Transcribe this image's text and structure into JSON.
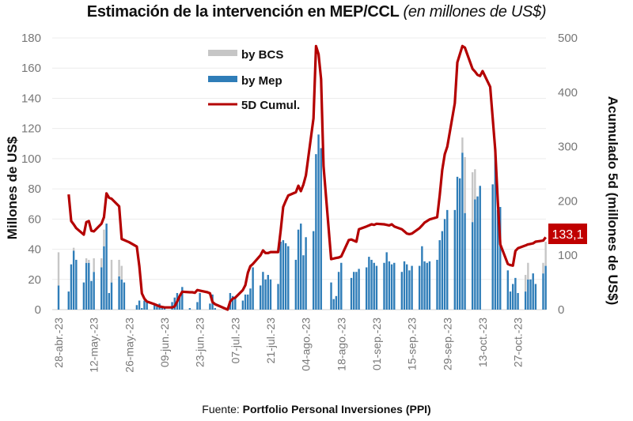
{
  "chart_data": {
    "type": "bar",
    "title": "Estimación de la intervención en MEP/CCL",
    "subtitle": "(en millones de US$)",
    "ylabel": "Millones de US$",
    "y2label": "Acumulado 5d (millones de US$)",
    "ylim": [
      0,
      180
    ],
    "y2lim": [
      0,
      500
    ],
    "yticks": [
      "0",
      "20",
      "40",
      "60",
      "80",
      "100",
      "120",
      "140",
      "160",
      "180"
    ],
    "y2ticks": [
      "0",
      "100",
      "200",
      "300",
      "400",
      "500"
    ],
    "xtick_labels": [
      "28-abr.-23",
      "12-may.-23",
      "26-may.-23",
      "09-jun.-23",
      "23-jun.-23",
      "07-jul.-23",
      "21-jul.-23",
      "04-ago.-23",
      "18-ago.-23",
      "01-sep.-23",
      "15-sep.-23",
      "29-sep.-23",
      "13-oct.-23",
      "27-oct.-23"
    ],
    "grid": true,
    "legend_position": "top-center",
    "legend": [
      "by BCS",
      "by Mep",
      "5D Cumul."
    ],
    "end_label": "133,1",
    "colors": {
      "bcs": "#c6c6c6",
      "mep": "#2f7db8",
      "cumul": "#b40000",
      "end_label_bg": "#c00000"
    },
    "dates": [
      "2023-04-28",
      "2023-05-01",
      "2023-05-02",
      "2023-05-03",
      "2023-05-04",
      "2023-05-05",
      "2023-05-08",
      "2023-05-09",
      "2023-05-10",
      "2023-05-11",
      "2023-05-12",
      "2023-05-15",
      "2023-05-16",
      "2023-05-17",
      "2023-05-18",
      "2023-05-19",
      "2023-05-22",
      "2023-05-23",
      "2023-05-24",
      "2023-05-25",
      "2023-05-26",
      "2023-05-29",
      "2023-05-30",
      "2023-05-31",
      "2023-06-01",
      "2023-06-02",
      "2023-06-05",
      "2023-06-06",
      "2023-06-07",
      "2023-06-08",
      "2023-06-09",
      "2023-06-12",
      "2023-06-13",
      "2023-06-14",
      "2023-06-15",
      "2023-06-16",
      "2023-06-19",
      "2023-06-20",
      "2023-06-21",
      "2023-06-22",
      "2023-06-23",
      "2023-06-26",
      "2023-06-27",
      "2023-06-28",
      "2023-06-29",
      "2023-06-30",
      "2023-07-03",
      "2023-07-04",
      "2023-07-05",
      "2023-07-06",
      "2023-07-07",
      "2023-07-10",
      "2023-07-11",
      "2023-07-12",
      "2023-07-13",
      "2023-07-14",
      "2023-07-17",
      "2023-07-18",
      "2023-07-19",
      "2023-07-20",
      "2023-07-21",
      "2023-07-24",
      "2023-07-25",
      "2023-07-26",
      "2023-07-27",
      "2023-07-28",
      "2023-07-31",
      "2023-08-01",
      "2023-08-02",
      "2023-08-03",
      "2023-08-04",
      "2023-08-07",
      "2023-08-08",
      "2023-08-09",
      "2023-08-10",
      "2023-08-11",
      "2023-08-14",
      "2023-08-15",
      "2023-08-16",
      "2023-08-17",
      "2023-08-18",
      "2023-08-21",
      "2023-08-22",
      "2023-08-23",
      "2023-08-24",
      "2023-08-25",
      "2023-08-28",
      "2023-08-29",
      "2023-08-30",
      "2023-08-31",
      "2023-09-01",
      "2023-09-04",
      "2023-09-05",
      "2023-09-06",
      "2023-09-07",
      "2023-09-08",
      "2023-09-11",
      "2023-09-12",
      "2023-09-13",
      "2023-09-14",
      "2023-09-15",
      "2023-09-18",
      "2023-09-19",
      "2023-09-20",
      "2023-09-21",
      "2023-09-22",
      "2023-09-25",
      "2023-09-26",
      "2023-09-27",
      "2023-09-28",
      "2023-09-29",
      "2023-10-02",
      "2023-10-03",
      "2023-10-04",
      "2023-10-05",
      "2023-10-06",
      "2023-10-09",
      "2023-10-10",
      "2023-10-11",
      "2023-10-12",
      "2023-10-13",
      "2023-10-16",
      "2023-10-17",
      "2023-10-18",
      "2023-10-19",
      "2023-10-20",
      "2023-10-23",
      "2023-10-24",
      "2023-10-25",
      "2023-10-26",
      "2023-10-27",
      "2023-10-30",
      "2023-10-31",
      "2023-11-01",
      "2023-11-02",
      "2023-11-03",
      "2023-11-06",
      "2023-11-07"
    ],
    "series": [
      {
        "name": "by Mep",
        "values": [
          16,
          0,
          12,
          30,
          39,
          33,
          18,
          31,
          31,
          19,
          25,
          28,
          42,
          57,
          11,
          18,
          22,
          20,
          18,
          0,
          0,
          3,
          6,
          1,
          6,
          5,
          3,
          2,
          4,
          2,
          1,
          5,
          8,
          11,
          9,
          15,
          1,
          0,
          0,
          5,
          11,
          0,
          4,
          10,
          1,
          0,
          0,
          1,
          11,
          9,
          8,
          6,
          10,
          10,
          14,
          28,
          16,
          25,
          20,
          23,
          20,
          17,
          45,
          46,
          44,
          42,
          33,
          53,
          57,
          36,
          48,
          52,
          103,
          116,
          107,
          0,
          18,
          7,
          9,
          25,
          31,
          0,
          21,
          25,
          25,
          27,
          28,
          35,
          33,
          31,
          29,
          31,
          38,
          32,
          30,
          31,
          25,
          32,
          30,
          26,
          29,
          29,
          42,
          32,
          31,
          32,
          33,
          46,
          52,
          60,
          66,
          66,
          88,
          87,
          104,
          64,
          58,
          73,
          75,
          82,
          0,
          0,
          83,
          107,
          66,
          68,
          26,
          12,
          17,
          21,
          11,
          12,
          20,
          20,
          24,
          17,
          24,
          29
        ]
      },
      {
        "name": "by BCS",
        "values": [
          22,
          0,
          0,
          0,
          2,
          0,
          0,
          3,
          2,
          0,
          9,
          6,
          11,
          0,
          0,
          15,
          11,
          9,
          0,
          0,
          0,
          0,
          0,
          0,
          0,
          0,
          0,
          0,
          0,
          0,
          0,
          0,
          0,
          0,
          0,
          0,
          0,
          0,
          0,
          0,
          0,
          0,
          0,
          0,
          0,
          0,
          0,
          0,
          0,
          0,
          0,
          0,
          0,
          0,
          0,
          0,
          0,
          0,
          0,
          0,
          0,
          0,
          0,
          0,
          0,
          0,
          0,
          0,
          0,
          0,
          0,
          0,
          0,
          0,
          0,
          0,
          0,
          0,
          0,
          0,
          0,
          0,
          0,
          0,
          0,
          0,
          0,
          0,
          0,
          0,
          0,
          0,
          0,
          0,
          0,
          0,
          0,
          0,
          0,
          0,
          0,
          0,
          0,
          0,
          0,
          0,
          0,
          0,
          0,
          0,
          0,
          0,
          0,
          0,
          10,
          37,
          33,
          20,
          0,
          0,
          0,
          0,
          0,
          0,
          0,
          0,
          0,
          0,
          0,
          0,
          0,
          11,
          11,
          0,
          0,
          0,
          7,
          16
        ]
      },
      {
        "name": "5D Cumul.",
        "axis": "right",
        "values": [
          null,
          null,
          212,
          163,
          157,
          150,
          138,
          161,
          163,
          145,
          144,
          158,
          170,
          214,
          206,
          204,
          190,
          130,
          128,
          126,
          124,
          116,
          80,
          30,
          20,
          15,
          10,
          8,
          6,
          5,
          4,
          4,
          6,
          15,
          25,
          33,
          32,
          32,
          31,
          36,
          35,
          32,
          30,
          14,
          10,
          8,
          2,
          0,
          15,
          20,
          22,
          36,
          45,
          68,
          80,
          84,
          100,
          109,
          104,
          104,
          106,
          106,
          145,
          189,
          200,
          210,
          216,
          228,
          218,
          230,
          247,
          352,
          485,
          470,
          424,
          264,
          93,
          94,
          95,
          96,
          98,
          128,
          129,
          127,
          125,
          148,
          153,
          155,
          157,
          156,
          158,
          157,
          156,
          155,
          157,
          153,
          148,
          144,
          140,
          139,
          140,
          150,
          155,
          160,
          163,
          166,
          170,
          210,
          257,
          286,
          300,
          380,
          455,
          470,
          485,
          482,
          443,
          438,
          432,
          430,
          439,
          410,
          352,
          294,
          200,
          120,
          84,
          82,
          81,
          108,
          113,
          118,
          120,
          121,
          122,
          125,
          127,
          133.1
        ]
      }
    ]
  },
  "source": {
    "prefix": "Fuente:",
    "name": "Portfolio Personal Inversiones (PPI)"
  }
}
